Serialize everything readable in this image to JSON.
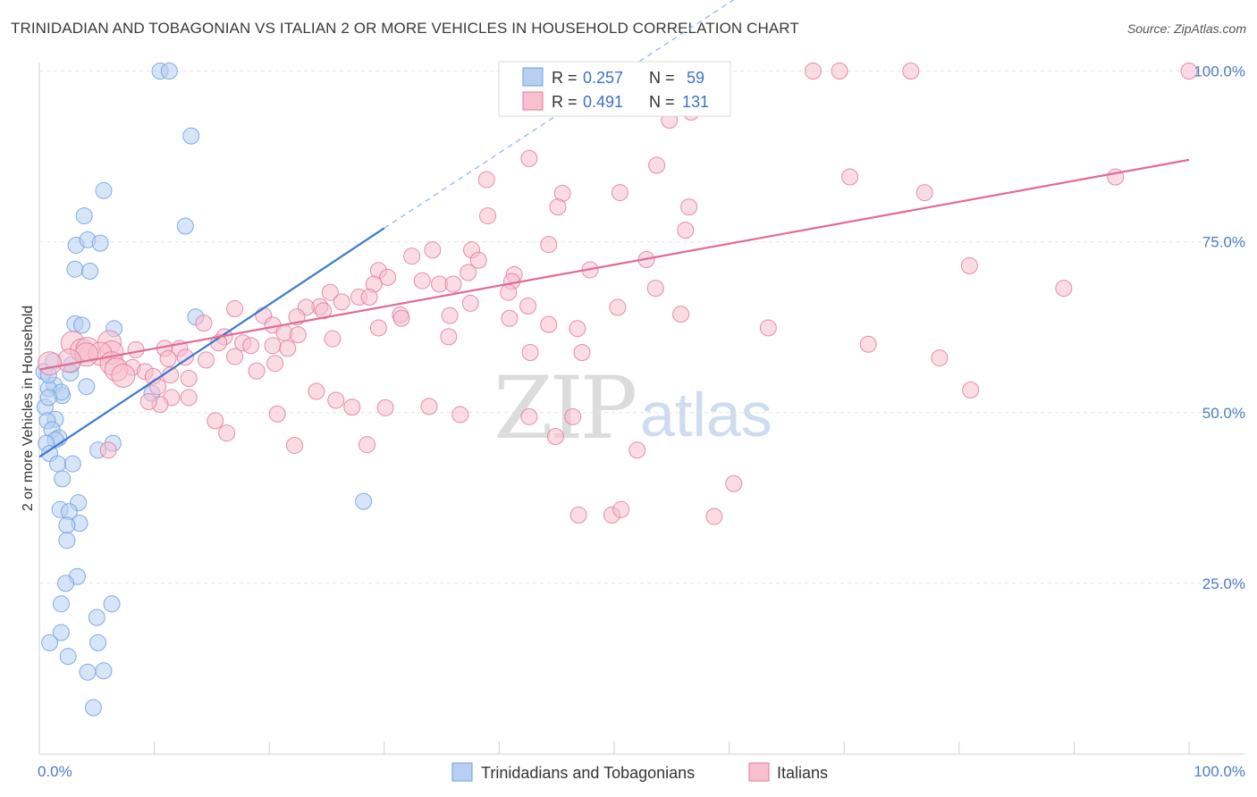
{
  "chart_data": {
    "type": "scatter",
    "title": "TRINIDADIAN AND TOBAGONIAN VS ITALIAN 2 OR MORE VEHICLES IN HOUSEHOLD CORRELATION CHART",
    "source": "Source: ZipAtlas.com",
    "xlabel": "",
    "ylabel": "2 or more Vehicles in Household",
    "xlim": [
      0,
      100
    ],
    "ylim": [
      0,
      104
    ],
    "x_tick_labels": [
      "0.0%",
      "100.0%"
    ],
    "y_ticks": [
      25,
      50,
      75,
      100
    ],
    "y_tick_labels": [
      "25.0%",
      "50.0%",
      "75.0%",
      "100.0%"
    ],
    "watermark": {
      "zip": "ZIP",
      "atlas": "atlas"
    },
    "legend": {
      "rows": [
        {
          "r_label": "R =",
          "r_value": "0.257",
          "n_label": "N =",
          "n_value": "59"
        },
        {
          "r_label": "R =",
          "r_value": "0.491",
          "n_label": "N =",
          "n_value": "131"
        }
      ]
    },
    "series": [
      {
        "name": "Trinidadians and Tobagonians",
        "color": "#6d9de0",
        "fill": "#b7cff2",
        "trend": {
          "x0": 0,
          "y0": 43.5,
          "x1": 30,
          "y1": 77.0,
          "dash_x1": 70,
          "dash_y1": 121
        },
        "points": [
          [
            10.5,
            100
          ],
          [
            11.3,
            100
          ],
          [
            13.2,
            90.5
          ],
          [
            5.6,
            82.5
          ],
          [
            3.9,
            78.8
          ],
          [
            12.7,
            77.3
          ],
          [
            3.2,
            74.5
          ],
          [
            4.2,
            75.3
          ],
          [
            5.3,
            74.8
          ],
          [
            3.1,
            71
          ],
          [
            4.4,
            70.7
          ],
          [
            3.1,
            63
          ],
          [
            3.7,
            62.8
          ],
          [
            6.5,
            62.3
          ],
          [
            13.6,
            64
          ],
          [
            0.4,
            56
          ],
          [
            1.2,
            57.5
          ],
          [
            2.8,
            57
          ],
          [
            2.7,
            55.8
          ],
          [
            1.3,
            54
          ],
          [
            0.8,
            53.5
          ],
          [
            2,
            52.5
          ],
          [
            1.9,
            53
          ],
          [
            4.1,
            53.8
          ],
          [
            9.8,
            52.8
          ],
          [
            0.5,
            50.8
          ],
          [
            1.4,
            49
          ],
          [
            0.7,
            48.8
          ],
          [
            1.1,
            47.5
          ],
          [
            1.7,
            46.3
          ],
          [
            1.4,
            46
          ],
          [
            0.6,
            45.5
          ],
          [
            6.4,
            45.5
          ],
          [
            5.1,
            44.5
          ],
          [
            0.9,
            44
          ],
          [
            1.6,
            42.5
          ],
          [
            2.9,
            42.5
          ],
          [
            2,
            40.3
          ],
          [
            3.4,
            36.8
          ],
          [
            1.8,
            35.8
          ],
          [
            2.6,
            35.5
          ],
          [
            3.5,
            33.8
          ],
          [
            2.4,
            33.5
          ],
          [
            2.4,
            31.3
          ],
          [
            3.3,
            26
          ],
          [
            2.3,
            25
          ],
          [
            1.9,
            22
          ],
          [
            6.3,
            22
          ],
          [
            5,
            20
          ],
          [
            1.9,
            17.8
          ],
          [
            5.1,
            16.3
          ],
          [
            0.9,
            16.3
          ],
          [
            2.5,
            14.3
          ],
          [
            5.6,
            12.2
          ],
          [
            4.2,
            12
          ],
          [
            4.7,
            6.8
          ],
          [
            28.2,
            37
          ],
          [
            0.8,
            55.5
          ],
          [
            0.8,
            52.2
          ]
        ]
      },
      {
        "name": "Italians",
        "color": "#e07a9b",
        "fill": "#f7bfd0",
        "trend": {
          "x0": 0,
          "y0": 56.3,
          "x1": 100,
          "y1": 87.0
        },
        "points": [
          [
            67.3,
            100
          ],
          [
            69.6,
            100
          ],
          [
            75.8,
            100
          ],
          [
            100,
            100
          ],
          [
            55.1,
            97.8
          ],
          [
            56.6,
            96.5
          ],
          [
            54.8,
            92.8
          ],
          [
            56.7,
            94
          ],
          [
            42.6,
            87.2
          ],
          [
            53.7,
            86.2
          ],
          [
            38.9,
            84.1
          ],
          [
            70.5,
            84.5
          ],
          [
            45.5,
            82.1
          ],
          [
            50.5,
            82.2
          ],
          [
            77,
            82.2
          ],
          [
            93.6,
            84.5
          ],
          [
            45.1,
            80.1
          ],
          [
            56.5,
            80.1
          ],
          [
            39,
            78.8
          ],
          [
            56.2,
            76.7
          ],
          [
            32.4,
            72.9
          ],
          [
            37.6,
            73.8
          ],
          [
            34.2,
            73.8
          ],
          [
            44.3,
            74.6
          ],
          [
            52.8,
            72.4
          ],
          [
            38.2,
            72.3
          ],
          [
            80.9,
            71.5
          ],
          [
            29.5,
            70.8
          ],
          [
            37.3,
            70.5
          ],
          [
            41.3,
            70.2
          ],
          [
            47.9,
            70.9
          ],
          [
            33.3,
            69.3
          ],
          [
            30.3,
            69.8
          ],
          [
            34.8,
            68.8
          ],
          [
            41.1,
            69.2
          ],
          [
            36,
            68.8
          ],
          [
            29.1,
            68.8
          ],
          [
            40.8,
            67.6
          ],
          [
            53.6,
            68.2
          ],
          [
            89.1,
            68.2
          ],
          [
            25.3,
            67.6
          ],
          [
            27.8,
            66.9
          ],
          [
            28.7,
            66.9
          ],
          [
            26.3,
            66.2
          ],
          [
            37.5,
            66
          ],
          [
            24.4,
            65.5
          ],
          [
            23.2,
            65.4
          ],
          [
            42.5,
            65.6
          ],
          [
            50.3,
            65.4
          ],
          [
            17,
            65.2
          ],
          [
            24.7,
            64.9
          ],
          [
            19.5,
            64.2
          ],
          [
            31.4,
            64.3
          ],
          [
            35.7,
            64.2
          ],
          [
            40.9,
            63.8
          ],
          [
            55.8,
            64.4
          ],
          [
            22.4,
            64
          ],
          [
            14.3,
            63.1
          ],
          [
            20.3,
            62.8
          ],
          [
            31.5,
            63.8
          ],
          [
            46.8,
            62.3
          ],
          [
            44.3,
            62.9
          ],
          [
            63.4,
            62.4
          ],
          [
            29.5,
            62.4
          ],
          [
            21.3,
            61.7
          ],
          [
            22.5,
            61.4
          ],
          [
            35.6,
            61.1
          ],
          [
            25.5,
            60.8
          ],
          [
            16.1,
            61.1
          ],
          [
            6.1,
            60.3
          ],
          [
            2.9,
            60.2
          ],
          [
            17.7,
            60.2
          ],
          [
            18.4,
            59.8
          ],
          [
            20.3,
            59.8
          ],
          [
            10.9,
            59.4
          ],
          [
            15.6,
            60.2
          ],
          [
            12.2,
            59.4
          ],
          [
            8.4,
            59.2
          ],
          [
            3.7,
            59.1
          ],
          [
            4.2,
            59.3
          ],
          [
            21.6,
            59.4
          ],
          [
            6.3,
            58.8
          ],
          [
            5.3,
            58.6
          ],
          [
            4.1,
            58.5
          ],
          [
            17,
            58.2
          ],
          [
            12.7,
            58.1
          ],
          [
            42.7,
            58.8
          ],
          [
            47.2,
            58.8
          ],
          [
            72.1,
            60
          ],
          [
            78.3,
            58
          ],
          [
            11.2,
            57.9
          ],
          [
            14.5,
            57.7
          ],
          [
            2.6,
            57.6
          ],
          [
            6.3,
            57.2
          ],
          [
            0.9,
            57.2
          ],
          [
            20.5,
            57.2
          ],
          [
            8.1,
            56.6
          ],
          [
            9.2,
            56
          ],
          [
            18.9,
            56.1
          ],
          [
            6.7,
            56.3
          ],
          [
            9.9,
            55.3
          ],
          [
            11.4,
            55.5
          ],
          [
            7.3,
            55.4
          ],
          [
            13,
            55
          ],
          [
            81,
            53.3
          ],
          [
            10.3,
            53.8
          ],
          [
            11.5,
            52.2
          ],
          [
            13,
            52.2
          ],
          [
            10.5,
            51.2
          ],
          [
            42.6,
            49.4
          ],
          [
            46.4,
            49.4
          ],
          [
            44.9,
            46.5
          ],
          [
            6,
            44.5
          ],
          [
            52,
            44.5
          ],
          [
            60.4,
            39.6
          ],
          [
            49.8,
            35
          ],
          [
            58.7,
            34.8
          ],
          [
            27.2,
            50.8
          ],
          [
            30.1,
            50.7
          ],
          [
            46.9,
            35
          ],
          [
            50.6,
            35.8
          ],
          [
            25.8,
            51.8
          ],
          [
            24.1,
            53.1
          ],
          [
            33.9,
            50.9
          ],
          [
            36.6,
            49.7
          ],
          [
            28.5,
            45.3
          ],
          [
            22.2,
            45.2
          ],
          [
            16.3,
            47
          ],
          [
            15.3,
            48.8
          ],
          [
            20.7,
            49.8
          ],
          [
            9.5,
            51.6
          ]
        ]
      }
    ]
  }
}
